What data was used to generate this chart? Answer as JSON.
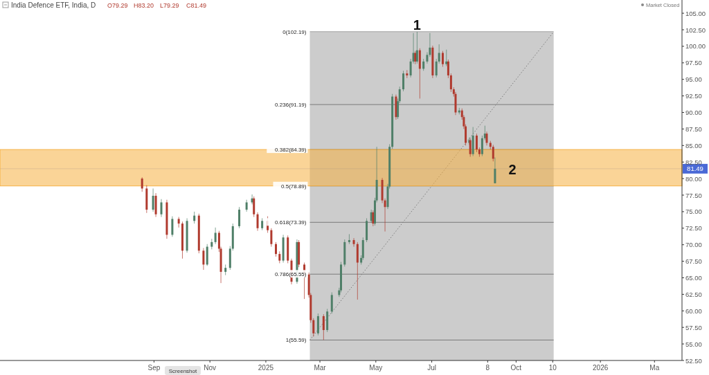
{
  "chart_data": {
    "type": "candlestick",
    "title": "India Defence ETF, India, D",
    "annotations": [
      "O79.29",
      "H83.20",
      "L79.29",
      "C81.49",
      "Market Closed",
      "Screenshot",
      {
        "text": "1",
        "x": "2025-06-15",
        "y": 102.19
      },
      {
        "text": "2",
        "x": "2025-09-27",
        "y": 81.5
      }
    ],
    "colors": [
      "#b03a2e",
      "#b03a2e",
      "#4f7f68",
      "#b03a2e",
      "#4f7f68",
      "#b03a2e",
      "#4f7f68",
      "#b03a2e",
      "#b03a2e",
      "#4f7f68",
      "#4f7f68",
      "#b03a2e",
      "#b03a2e",
      "#4f7f68",
      "#4f7f68",
      "#4f7f68",
      "#b03a2e",
      "#b03a2e",
      "#4f7f68",
      "#4f7f68",
      "#4f7f68",
      "#4f7f68",
      "#4f7f68",
      "#4f7f68",
      "#b03a2e",
      "#b03a2e",
      "#4f7f68",
      "#b03a2e",
      "#b03a2e",
      "#b03a2e",
      "#b03a2e",
      "#4f7f68",
      "#b03a2e",
      "#b03a2e",
      "#4f7f68",
      "#b03a2e",
      "#b03a2e",
      "#b03a2e",
      "#b03a2e",
      "#b03a2e",
      "#4f7f68",
      "#b03a2e",
      "#4f7f68",
      "#4f7f68",
      "#4f7f68",
      "#4f7f68",
      "#4f7f68",
      "#4f7f68",
      "#b03a2e",
      "#b03a2e",
      "#4f7f68",
      "#4f7f68",
      "#4f7f68",
      "#4f7f68",
      "#b03a2e",
      "#4f7f68",
      "#4f7f68",
      "#b03a2e",
      "#b03a2e",
      "#4f7f68",
      "#4f7f68",
      "#4f7f68",
      "#b03a2e",
      "#4f7f68",
      "#4f7f68",
      "#4f7f68",
      "#b03a2e",
      "#4f7f68",
      "#4f7f68",
      "#b03a2e",
      "#4f7f68",
      "#b03a2e",
      "#4f7f68",
      "#4f7f68",
      "#4f7f68",
      "#b03a2e",
      "#4f7f68",
      "#4f7f68",
      "#b03a2e",
      "#4f7f68",
      "#b03a2e",
      "#b03a2e",
      "#b03a2e",
      "#b03a2e",
      "#4f7f68",
      "#b03a2e",
      "#b03a2e",
      "#b03a2e",
      "#4f7f68",
      "#b03a2e",
      "#4f7f68",
      "#b03a2e",
      "#b03a2e",
      "#4f7f68",
      "#4f7f68",
      "#b03a2e",
      "#b03a2e",
      "#b03a2e",
      "#4f7f68"
    ],
    "x": [
      "2024-08-19",
      "2024-08-24",
      "2024-08-31",
      "2024-09-03",
      "2024-09-09",
      "2024-09-15",
      "2024-09-21",
      "2024-09-28",
      "2024-10-02",
      "2024-10-07",
      "2024-10-15",
      "2024-10-20",
      "2024-10-25",
      "2024-10-29",
      "2024-11-03",
      "2024-11-07",
      "2024-11-11",
      "2024-11-13",
      "2024-11-18",
      "2024-11-23",
      "2024-11-26",
      "2024-12-03",
      "2024-12-11",
      "2024-12-17",
      "2024-12-19",
      "2024-12-23",
      "2024-12-28",
      "2025-01-03",
      "2025-01-07",
      "2025-01-12",
      "2025-01-16",
      "2025-01-20",
      "2025-01-25",
      "2025-01-29",
      "2025-02-04",
      "2025-02-06",
      "2025-02-12",
      "2025-02-17",
      "2025-02-19",
      "2025-02-22",
      "2025-02-27",
      "2025-03-05",
      "2025-03-09",
      "2025-03-14",
      "2025-03-22",
      "2025-03-24",
      "2025-03-28",
      "2025-04-02",
      "2025-04-07",
      "2025-04-11",
      "2025-04-15",
      "2025-04-17",
      "2025-04-21",
      "2025-04-26",
      "2025-04-28",
      "2025-04-30",
      "2025-05-02",
      "2025-05-08",
      "2025-05-11",
      "2025-05-14",
      "2025-05-16",
      "2025-05-19",
      "2025-05-23",
      "2025-05-25",
      "2025-05-27",
      "2025-05-31",
      "2025-06-04",
      "2025-06-08",
      "2025-06-11",
      "2025-06-13",
      "2025-06-15",
      "2025-06-18",
      "2025-06-22",
      "2025-06-26",
      "2025-06-29",
      "2025-07-02",
      "2025-07-06",
      "2025-07-09",
      "2025-07-13",
      "2025-07-17",
      "2025-07-19",
      "2025-07-22",
      "2025-07-25",
      "2025-07-27",
      "2025-07-31",
      "2025-08-03",
      "2025-08-05",
      "2025-08-07",
      "2025-08-11",
      "2025-08-12",
      "2025-08-15",
      "2025-08-19",
      "2025-08-22",
      "2025-08-25",
      "2025-08-28",
      "2025-08-30",
      "2025-09-03",
      "2025-09-06",
      "2025-09-08"
    ],
    "ohlc": [
      [
        80.0,
        80.2,
        78.0,
        78.5
      ],
      [
        78.5,
        79.0,
        74.8,
        75.3
      ],
      [
        75.3,
        78.5,
        75.0,
        77.4
      ],
      [
        77.4,
        77.8,
        74.2,
        74.6
      ],
      [
        74.6,
        76.9,
        74.2,
        76.4
      ],
      [
        76.4,
        76.8,
        70.9,
        71.5
      ],
      [
        71.5,
        74.3,
        71.2,
        73.9
      ],
      [
        73.9,
        74.2,
        72.6,
        73.2
      ],
      [
        73.2,
        73.5,
        67.9,
        69.1
      ],
      [
        69.1,
        74.0,
        68.8,
        73.6
      ],
      [
        73.6,
        75.0,
        73.2,
        74.4
      ],
      [
        74.4,
        74.7,
        68.7,
        69.1
      ],
      [
        69.1,
        69.5,
        66.2,
        67.0
      ],
      [
        67.0,
        70.1,
        66.8,
        69.7
      ],
      [
        69.7,
        70.9,
        69.3,
        70.4
      ],
      [
        70.4,
        72.6,
        70.1,
        71.8
      ],
      [
        71.8,
        72.1,
        68.9,
        69.4
      ],
      [
        69.4,
        69.7,
        64.2,
        65.9
      ],
      [
        65.9,
        67.0,
        65.4,
        66.5
      ],
      [
        66.5,
        69.8,
        66.2,
        69.4
      ],
      [
        69.4,
        73.2,
        69.1,
        72.8
      ],
      [
        72.8,
        75.7,
        72.5,
        75.3
      ],
      [
        75.3,
        76.8,
        75.0,
        76.4
      ],
      [
        76.4,
        77.6,
        76.1,
        77.0
      ],
      [
        77.0,
        77.3,
        74.2,
        74.6
      ],
      [
        74.6,
        74.9,
        72.1,
        72.5
      ],
      [
        72.5,
        74.0,
        72.2,
        73.6
      ],
      [
        73.6,
        74.3,
        71.8,
        72.2
      ],
      [
        72.2,
        72.5,
        69.7,
        70.1
      ],
      [
        70.1,
        70.4,
        68.2,
        68.6
      ],
      [
        68.6,
        69.0,
        67.2,
        67.6
      ],
      [
        67.6,
        71.5,
        67.3,
        71.1
      ],
      [
        71.1,
        71.4,
        67.2,
        67.6
      ],
      [
        67.6,
        67.9,
        64.0,
        64.4
      ],
      [
        64.4,
        70.8,
        64.1,
        70.4
      ],
      [
        70.4,
        70.7,
        66.6,
        67.0
      ],
      [
        67.0,
        67.3,
        61.8,
        65.5
      ],
      [
        65.5,
        65.8,
        62.0,
        62.4
      ],
      [
        62.4,
        62.7,
        58.2,
        58.6
      ],
      [
        58.6,
        58.9,
        56.1,
        56.6
      ],
      [
        56.6,
        59.6,
        56.3,
        59.2
      ],
      [
        59.2,
        59.5,
        55.59,
        57.1
      ],
      [
        57.1,
        60.3,
        56.8,
        59.9
      ],
      [
        59.9,
        62.8,
        59.6,
        62.4
      ],
      [
        62.4,
        63.5,
        62.1,
        63.1
      ],
      [
        63.1,
        67.4,
        62.8,
        67.0
      ],
      [
        67.0,
        70.8,
        66.7,
        70.4
      ],
      [
        70.4,
        71.6,
        70.1,
        70.7
      ],
      [
        70.7,
        71.0,
        69.7,
        70.1
      ],
      [
        70.1,
        70.4,
        61.7,
        67.3
      ],
      [
        67.3,
        68.4,
        67.0,
        68.0
      ],
      [
        68.0,
        71.1,
        67.7,
        70.7
      ],
      [
        70.7,
        74.0,
        70.4,
        73.6
      ],
      [
        73.6,
        75.3,
        73.3,
        74.9
      ],
      [
        74.9,
        75.2,
        72.8,
        73.2
      ],
      [
        73.2,
        77.1,
        72.9,
        76.7
      ],
      [
        76.7,
        84.8,
        76.4,
        79.8
      ],
      [
        79.8,
        80.1,
        76.3,
        76.7
      ],
      [
        76.7,
        77.0,
        72.0,
        75.7
      ],
      [
        75.7,
        79.2,
        75.4,
        78.8
      ],
      [
        78.8,
        85.2,
        78.5,
        84.8
      ],
      [
        84.8,
        92.8,
        84.5,
        92.4
      ],
      [
        92.4,
        92.7,
        88.9,
        89.3
      ],
      [
        89.3,
        92.1,
        89.0,
        91.7
      ],
      [
        91.7,
        93.9,
        91.4,
        93.5
      ],
      [
        93.5,
        96.3,
        93.2,
        95.9
      ],
      [
        95.9,
        96.4,
        95.2,
        95.6
      ],
      [
        95.6,
        98.1,
        95.3,
        97.7
      ],
      [
        97.7,
        102.0,
        97.4,
        99.0
      ],
      [
        99.0,
        99.3,
        97.3,
        97.7
      ],
      [
        97.7,
        102.19,
        97.4,
        99.4
      ],
      [
        99.4,
        99.7,
        92.1,
        96.6
      ],
      [
        96.6,
        98.1,
        96.3,
        97.7
      ],
      [
        97.7,
        99.1,
        97.4,
        98.7
      ],
      [
        98.7,
        102.0,
        98.4,
        99.8
      ],
      [
        99.8,
        100.1,
        95.2,
        95.6
      ],
      [
        95.6,
        98.1,
        95.3,
        97.7
      ],
      [
        97.7,
        100.3,
        97.4,
        99.0
      ],
      [
        99.0,
        99.3,
        96.9,
        97.3
      ],
      [
        97.3,
        99.5,
        97.0,
        97.7
      ],
      [
        97.7,
        98.0,
        95.2,
        95.6
      ],
      [
        95.6,
        95.9,
        93.1,
        93.5
      ],
      [
        93.5,
        93.8,
        92.4,
        92.8
      ],
      [
        92.8,
        93.1,
        89.6,
        90.0
      ],
      [
        90.0,
        90.7,
        89.7,
        90.3
      ],
      [
        90.3,
        90.6,
        88.9,
        89.3
      ],
      [
        89.3,
        89.6,
        87.5,
        87.9
      ],
      [
        87.9,
        88.2,
        85.0,
        85.4
      ],
      [
        85.4,
        86.2,
        85.1,
        85.8
      ],
      [
        85.8,
        86.1,
        83.3,
        83.7
      ],
      [
        83.7,
        87.8,
        83.4,
        86.5
      ],
      [
        86.5,
        86.8,
        84.0,
        84.4
      ],
      [
        84.4,
        84.7,
        83.3,
        83.7
      ],
      [
        83.7,
        86.5,
        83.4,
        86.1
      ],
      [
        86.1,
        88.0,
        85.8,
        86.8
      ],
      [
        86.8,
        87.1,
        85.0,
        85.4
      ],
      [
        85.4,
        85.7,
        84.4,
        84.8
      ],
      [
        84.8,
        85.1,
        82.6,
        83.0
      ],
      [
        79.29,
        83.2,
        79.29,
        81.49
      ]
    ],
    "series": [
      {
        "type": "line",
        "x": [
          "2025-02-18",
          "2025-11-11"
        ],
        "values": [
          55.59,
          102.19
        ],
        "color": "#777777",
        "line_style": "dotted"
      }
    ],
    "bands": [
      {
        "axis": "x",
        "from": "2025-02-18",
        "to": "2025-11-11",
        "color": "#cccccc"
      },
      {
        "axis": "y",
        "from": 78.89,
        "to": 84.39,
        "color": "#f5b041"
      }
    ],
    "ref_lines": [
      {
        "axis": "y",
        "value": 102.19,
        "label": "0(102.19)"
      },
      {
        "axis": "y",
        "value": 91.19,
        "label": "0.236(91.19)"
      },
      {
        "axis": "y",
        "value": 84.39,
        "label": "0.382(84.39)"
      },
      {
        "axis": "y",
        "value": 78.89,
        "label": "0.5(78.89)"
      },
      {
        "axis": "y",
        "value": 73.39,
        "label": "0.618(73.39)"
      },
      {
        "axis": "y",
        "value": 65.55,
        "label": "0.786(65.55)"
      },
      {
        "axis": "y",
        "value": 55.59,
        "label": "1(55.59)"
      },
      {
        "axis": "y",
        "value": 81.49,
        "label": "81.49",
        "color": "#4a69d6"
      }
    ],
    "xlim": [
      "2024-03-17",
      "2026-03-31"
    ],
    "xticks": [
      {
        "value": "2024-09-01",
        "label": "Sep"
      },
      {
        "value": "2024-11-01",
        "label": "Nov"
      },
      {
        "value": "2025-01-01",
        "label": "2025"
      },
      {
        "value": "2025-03-01",
        "label": "Mar"
      },
      {
        "value": "2025-05-01",
        "label": "May"
      },
      {
        "value": "2025-07-01",
        "label": "Jul"
      },
      {
        "value": "2025-08-31",
        "label": "8"
      },
      {
        "value": "2025-10-01",
        "label": "Oct"
      },
      {
        "value": "2025-11-10",
        "label": "10"
      },
      {
        "value": "2026-01-01",
        "label": "2026"
      },
      {
        "value": "2026-03-01",
        "label": "Ma"
      }
    ],
    "ylim": [
      52.5,
      107
    ],
    "yticks": [
      {
        "value": 52.5,
        "label": "52.50"
      },
      {
        "value": 55,
        "label": "55.00"
      },
      {
        "value": 57.5,
        "label": "57.50"
      },
      {
        "value": 60,
        "label": "60.00"
      },
      {
        "value": 62.5,
        "label": "62.50"
      },
      {
        "value": 65,
        "label": "65.00"
      },
      {
        "value": 67.5,
        "label": "67.50"
      },
      {
        "value": 70,
        "label": "70.00"
      },
      {
        "value": 72.5,
        "label": "72.50"
      },
      {
        "value": 75,
        "label": "75.00"
      },
      {
        "value": 77.5,
        "label": "77.50"
      },
      {
        "value": 80,
        "label": "80.00"
      },
      {
        "value": 82.5,
        "label": "82.50"
      },
      {
        "value": 85,
        "label": "85.00"
      },
      {
        "value": 87.5,
        "label": "87.50"
      },
      {
        "value": 90,
        "label": "90.00"
      },
      {
        "value": 92.5,
        "label": "92.50"
      },
      {
        "value": 95,
        "label": "95.00"
      },
      {
        "value": 97.5,
        "label": "97.50"
      },
      {
        "value": 100,
        "label": "100.00"
      },
      {
        "value": 102.5,
        "label": "102.50"
      },
      {
        "value": 105,
        "label": "105.00"
      }
    ]
  }
}
